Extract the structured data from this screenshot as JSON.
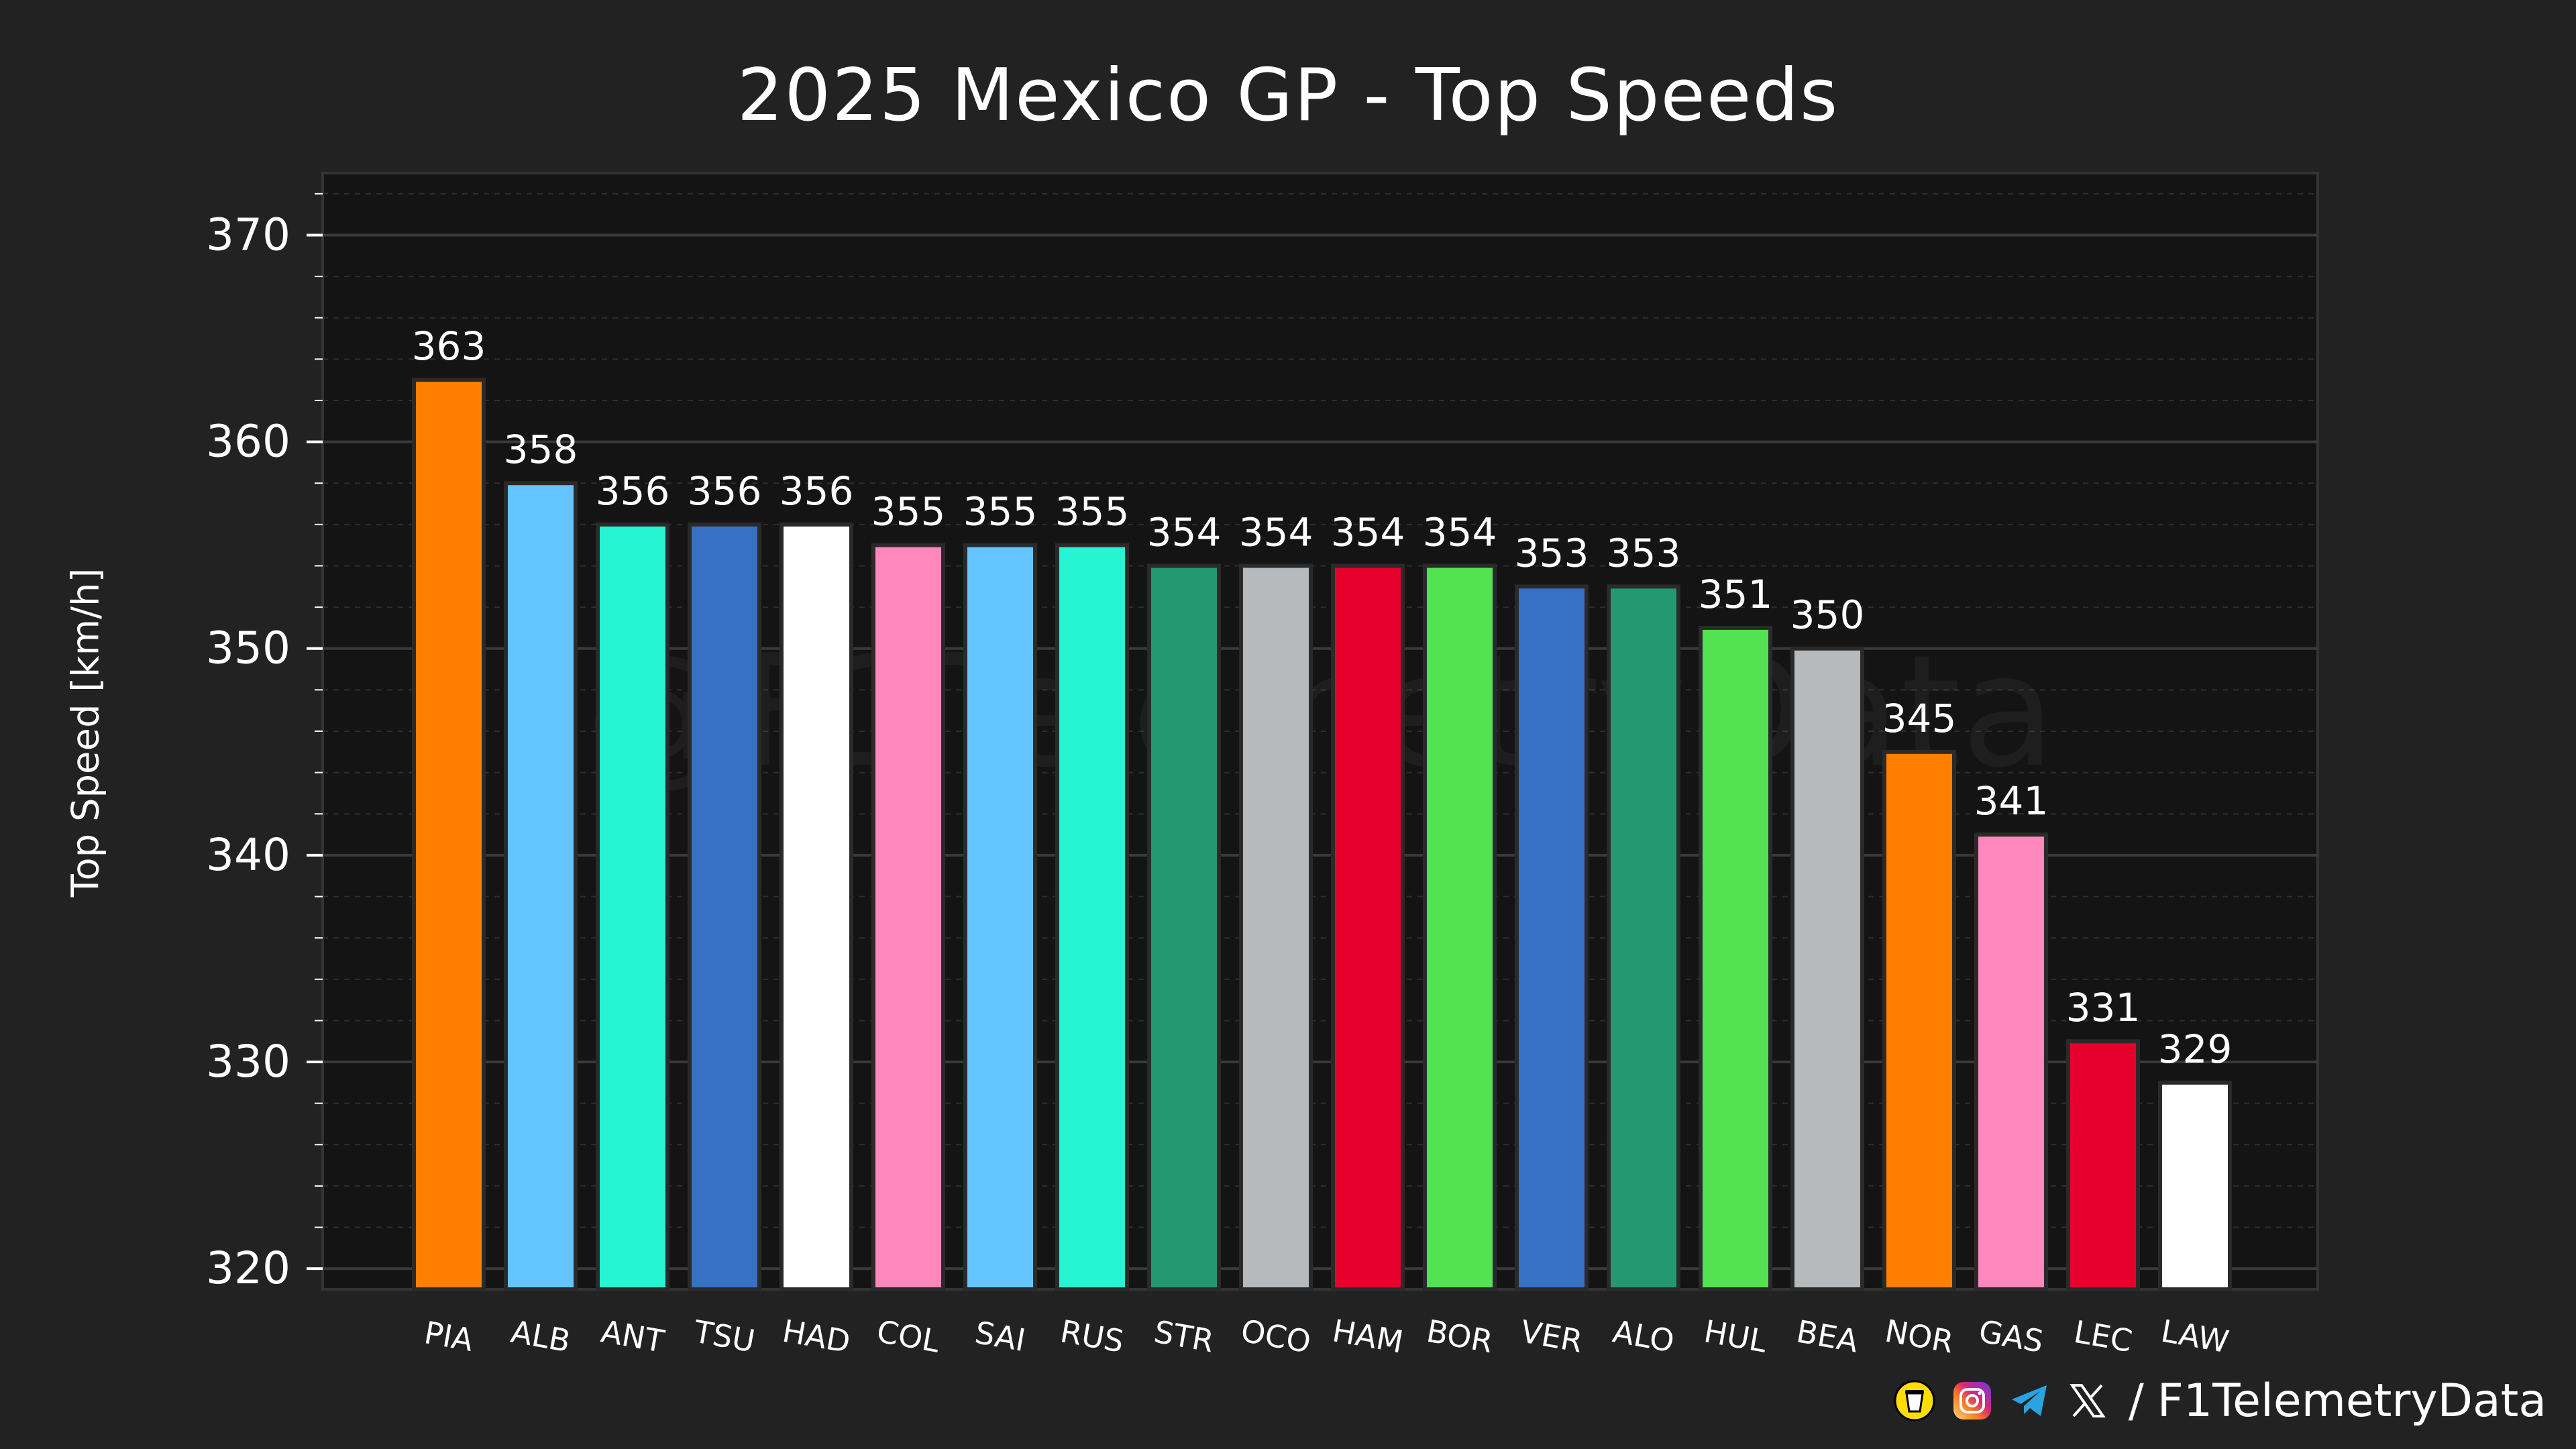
{
  "chart_data": {
    "type": "bar",
    "title": "2025 Mexico GP - Top Speeds",
    "xlabel": "",
    "ylabel": "Top Speed [km/h]",
    "ylim": [
      319,
      373
    ],
    "yticks": [
      320,
      330,
      340,
      350,
      360,
      370
    ],
    "grid": true,
    "categories": [
      "PIA",
      "ALB",
      "ANT",
      "TSU",
      "HAD",
      "COL",
      "SAI",
      "RUS",
      "STR",
      "OCO",
      "HAM",
      "BOR",
      "VER",
      "ALO",
      "HUL",
      "BEA",
      "NOR",
      "GAS",
      "LEC",
      "LAW"
    ],
    "values": [
      363,
      358,
      356,
      356,
      356,
      355,
      355,
      355,
      354,
      354,
      354,
      354,
      353,
      353,
      351,
      350,
      345,
      341,
      331,
      329
    ],
    "colors": [
      "#FF8000",
      "#64C4FF",
      "#27F4D2",
      "#3671C6",
      "#FFFFFF",
      "#FF87BC",
      "#64C4FF",
      "#27F4D2",
      "#229971",
      "#B6BABD",
      "#E8002D",
      "#52E252",
      "#3671C6",
      "#229971",
      "#52E252",
      "#B6BABD",
      "#FF8000",
      "#FF87BC",
      "#E8002D",
      "#FFFFFF"
    ],
    "watermark": "@F1TelemetryData"
  },
  "footer": {
    "separator": "/",
    "handle": "F1TelemetryData",
    "icons": [
      "buy-me-a-coffee-icon",
      "instagram-icon",
      "telegram-icon",
      "x-icon"
    ]
  },
  "colors": {
    "background": "#222222",
    "plot_background": "#141414",
    "grid": "#3a3a3a",
    "text": "#ffffff"
  }
}
